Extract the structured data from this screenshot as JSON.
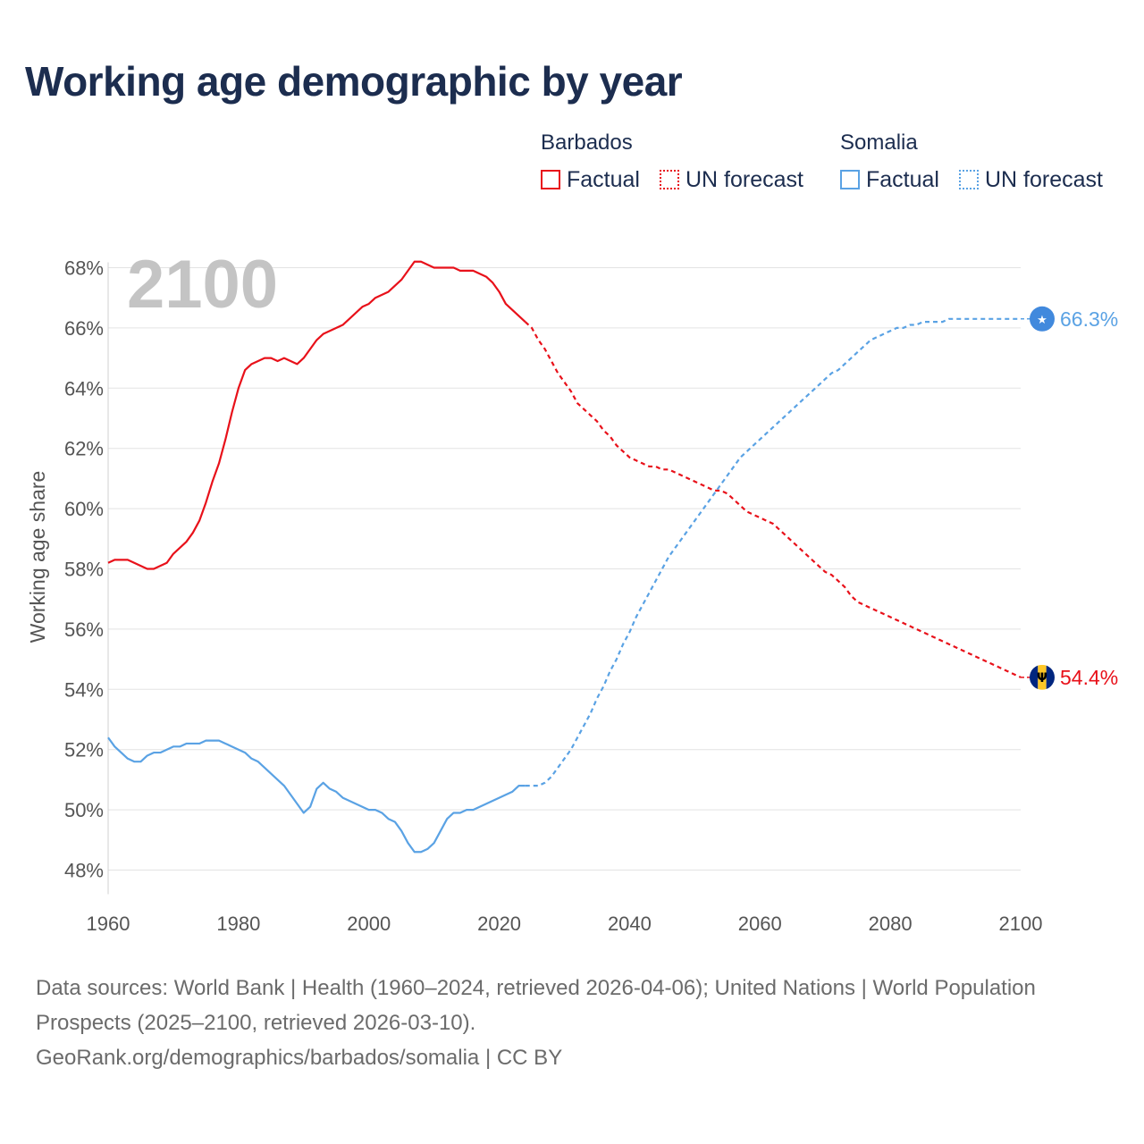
{
  "title": "Working age demographic by year",
  "legend": {
    "groups": [
      {
        "label": "Barbados",
        "color": "#e8111a",
        "factual": "Factual",
        "forecast": "UN forecast"
      },
      {
        "label": "Somalia",
        "color": "#5aa2e4",
        "factual": "Factual",
        "forecast": "UN forecast"
      }
    ]
  },
  "year_label": "2100",
  "footer": {
    "line1": "Data sources: World Bank | Health (1960–2024, retrieved 2026-04-06); United Nations | World Population Prospects (2025–2100, retrieved 2026-03-10).",
    "line2": "GeoRank.org/demographics/barbados/somalia | CC BY"
  },
  "chart_data": {
    "type": "line",
    "title": "Working age demographic by year",
    "xlabel": "",
    "ylabel": "Working age share",
    "xlim": [
      1960,
      2100
    ],
    "ylim": [
      47,
      69
    ],
    "x_ticks": [
      1960,
      1980,
      2000,
      2020,
      2040,
      2060,
      2080,
      2100
    ],
    "y_ticks": [
      48,
      50,
      52,
      54,
      56,
      58,
      60,
      62,
      64,
      66,
      68
    ],
    "y_tick_suffix": "%",
    "grid": true,
    "series": [
      {
        "name": "Barbados",
        "color": "#e8111a",
        "end_label": "54.4%",
        "flag_icon": "barbados-flag-icon",
        "factual": [
          [
            1960,
            58.2
          ],
          [
            1961,
            58.3
          ],
          [
            1962,
            58.3
          ],
          [
            1963,
            58.3
          ],
          [
            1964,
            58.2
          ],
          [
            1965,
            58.1
          ],
          [
            1966,
            58.0
          ],
          [
            1967,
            58.0
          ],
          [
            1968,
            58.1
          ],
          [
            1969,
            58.2
          ],
          [
            1970,
            58.5
          ],
          [
            1971,
            58.7
          ],
          [
            1972,
            58.9
          ],
          [
            1973,
            59.2
          ],
          [
            1974,
            59.6
          ],
          [
            1975,
            60.2
          ],
          [
            1976,
            60.9
          ],
          [
            1977,
            61.5
          ],
          [
            1978,
            62.3
          ],
          [
            1979,
            63.2
          ],
          [
            1980,
            64.0
          ],
          [
            1981,
            64.6
          ],
          [
            1982,
            64.8
          ],
          [
            1983,
            64.9
          ],
          [
            1984,
            65.0
          ],
          [
            1985,
            65.0
          ],
          [
            1986,
            64.9
          ],
          [
            1987,
            65.0
          ],
          [
            1988,
            64.9
          ],
          [
            1989,
            64.8
          ],
          [
            1990,
            65.0
          ],
          [
            1991,
            65.3
          ],
          [
            1992,
            65.6
          ],
          [
            1993,
            65.8
          ],
          [
            1994,
            65.9
          ],
          [
            1995,
            66.0
          ],
          [
            1996,
            66.1
          ],
          [
            1997,
            66.3
          ],
          [
            1998,
            66.5
          ],
          [
            1999,
            66.7
          ],
          [
            2000,
            66.8
          ],
          [
            2001,
            67.0
          ],
          [
            2002,
            67.1
          ],
          [
            2003,
            67.2
          ],
          [
            2004,
            67.4
          ],
          [
            2005,
            67.6
          ],
          [
            2006,
            67.9
          ],
          [
            2007,
            68.2
          ],
          [
            2008,
            68.2
          ],
          [
            2009,
            68.1
          ],
          [
            2010,
            68.0
          ],
          [
            2011,
            68.0
          ],
          [
            2012,
            68.0
          ],
          [
            2013,
            68.0
          ],
          [
            2014,
            67.9
          ],
          [
            2015,
            67.9
          ],
          [
            2016,
            67.9
          ],
          [
            2017,
            67.8
          ],
          [
            2018,
            67.7
          ],
          [
            2019,
            67.5
          ],
          [
            2020,
            67.2
          ],
          [
            2021,
            66.8
          ],
          [
            2022,
            66.6
          ],
          [
            2023,
            66.4
          ],
          [
            2024,
            66.2
          ]
        ],
        "forecast": [
          [
            2024,
            66.2
          ],
          [
            2025,
            66.0
          ],
          [
            2026,
            65.6
          ],
          [
            2027,
            65.3
          ],
          [
            2028,
            64.9
          ],
          [
            2029,
            64.5
          ],
          [
            2030,
            64.2
          ],
          [
            2031,
            63.9
          ],
          [
            2032,
            63.5
          ],
          [
            2033,
            63.3
          ],
          [
            2034,
            63.1
          ],
          [
            2035,
            62.9
          ],
          [
            2036,
            62.6
          ],
          [
            2037,
            62.4
          ],
          [
            2038,
            62.1
          ],
          [
            2039,
            61.9
          ],
          [
            2040,
            61.7
          ],
          [
            2041,
            61.6
          ],
          [
            2042,
            61.5
          ],
          [
            2043,
            61.4
          ],
          [
            2044,
            61.4
          ],
          [
            2045,
            61.3
          ],
          [
            2046,
            61.3
          ],
          [
            2047,
            61.2
          ],
          [
            2048,
            61.1
          ],
          [
            2049,
            61.0
          ],
          [
            2050,
            60.9
          ],
          [
            2051,
            60.8
          ],
          [
            2052,
            60.7
          ],
          [
            2053,
            60.6
          ],
          [
            2054,
            60.6
          ],
          [
            2055,
            60.5
          ],
          [
            2056,
            60.3
          ],
          [
            2057,
            60.1
          ],
          [
            2058,
            59.9
          ],
          [
            2059,
            59.8
          ],
          [
            2060,
            59.7
          ],
          [
            2061,
            59.6
          ],
          [
            2062,
            59.5
          ],
          [
            2063,
            59.3
          ],
          [
            2064,
            59.1
          ],
          [
            2065,
            58.9
          ],
          [
            2066,
            58.7
          ],
          [
            2067,
            58.5
          ],
          [
            2068,
            58.3
          ],
          [
            2069,
            58.1
          ],
          [
            2070,
            57.9
          ],
          [
            2071,
            57.8
          ],
          [
            2072,
            57.6
          ],
          [
            2073,
            57.4
          ],
          [
            2074,
            57.1
          ],
          [
            2075,
            56.9
          ],
          [
            2076,
            56.8
          ],
          [
            2077,
            56.7
          ],
          [
            2078,
            56.6
          ],
          [
            2079,
            56.5
          ],
          [
            2080,
            56.4
          ],
          [
            2081,
            56.3
          ],
          [
            2082,
            56.2
          ],
          [
            2083,
            56.1
          ],
          [
            2084,
            56.0
          ],
          [
            2085,
            55.9
          ],
          [
            2086,
            55.8
          ],
          [
            2087,
            55.7
          ],
          [
            2088,
            55.6
          ],
          [
            2089,
            55.5
          ],
          [
            2090,
            55.4
          ],
          [
            2091,
            55.3
          ],
          [
            2092,
            55.2
          ],
          [
            2093,
            55.1
          ],
          [
            2094,
            55.0
          ],
          [
            2095,
            54.9
          ],
          [
            2096,
            54.8
          ],
          [
            2097,
            54.7
          ],
          [
            2098,
            54.6
          ],
          [
            2099,
            54.5
          ],
          [
            2100,
            54.4
          ]
        ]
      },
      {
        "name": "Somalia",
        "color": "#5aa2e4",
        "end_label": "66.3%",
        "flag_icon": "somalia-flag-icon",
        "factual": [
          [
            1960,
            52.4
          ],
          [
            1961,
            52.1
          ],
          [
            1962,
            51.9
          ],
          [
            1963,
            51.7
          ],
          [
            1964,
            51.6
          ],
          [
            1965,
            51.6
          ],
          [
            1966,
            51.8
          ],
          [
            1967,
            51.9
          ],
          [
            1968,
            51.9
          ],
          [
            1969,
            52.0
          ],
          [
            1970,
            52.1
          ],
          [
            1971,
            52.1
          ],
          [
            1972,
            52.2
          ],
          [
            1973,
            52.2
          ],
          [
            1974,
            52.2
          ],
          [
            1975,
            52.3
          ],
          [
            1976,
            52.3
          ],
          [
            1977,
            52.3
          ],
          [
            1978,
            52.2
          ],
          [
            1979,
            52.1
          ],
          [
            1980,
            52.0
          ],
          [
            1981,
            51.9
          ],
          [
            1982,
            51.7
          ],
          [
            1983,
            51.6
          ],
          [
            1984,
            51.4
          ],
          [
            1985,
            51.2
          ],
          [
            1986,
            51.0
          ],
          [
            1987,
            50.8
          ],
          [
            1988,
            50.5
          ],
          [
            1989,
            50.2
          ],
          [
            1990,
            49.9
          ],
          [
            1991,
            50.1
          ],
          [
            1992,
            50.7
          ],
          [
            1993,
            50.9
          ],
          [
            1994,
            50.7
          ],
          [
            1995,
            50.6
          ],
          [
            1996,
            50.4
          ],
          [
            1997,
            50.3
          ],
          [
            1998,
            50.2
          ],
          [
            1999,
            50.1
          ],
          [
            2000,
            50.0
          ],
          [
            2001,
            50.0
          ],
          [
            2002,
            49.9
          ],
          [
            2003,
            49.7
          ],
          [
            2004,
            49.6
          ],
          [
            2005,
            49.3
          ],
          [
            2006,
            48.9
          ],
          [
            2007,
            48.6
          ],
          [
            2008,
            48.6
          ],
          [
            2009,
            48.7
          ],
          [
            2010,
            48.9
          ],
          [
            2011,
            49.3
          ],
          [
            2012,
            49.7
          ],
          [
            2013,
            49.9
          ],
          [
            2014,
            49.9
          ],
          [
            2015,
            50.0
          ],
          [
            2016,
            50.0
          ],
          [
            2017,
            50.1
          ],
          [
            2018,
            50.2
          ],
          [
            2019,
            50.3
          ],
          [
            2020,
            50.4
          ],
          [
            2021,
            50.5
          ],
          [
            2022,
            50.6
          ],
          [
            2023,
            50.8
          ],
          [
            2024,
            50.8
          ]
        ],
        "forecast": [
          [
            2024,
            50.8
          ],
          [
            2025,
            50.8
          ],
          [
            2026,
            50.8
          ],
          [
            2027,
            50.9
          ],
          [
            2028,
            51.1
          ],
          [
            2029,
            51.4
          ],
          [
            2030,
            51.7
          ],
          [
            2031,
            52.0
          ],
          [
            2032,
            52.4
          ],
          [
            2033,
            52.8
          ],
          [
            2034,
            53.2
          ],
          [
            2035,
            53.7
          ],
          [
            2036,
            54.1
          ],
          [
            2037,
            54.6
          ],
          [
            2038,
            55.0
          ],
          [
            2039,
            55.5
          ],
          [
            2040,
            55.9
          ],
          [
            2041,
            56.4
          ],
          [
            2042,
            56.8
          ],
          [
            2043,
            57.2
          ],
          [
            2044,
            57.6
          ],
          [
            2045,
            58.0
          ],
          [
            2046,
            58.4
          ],
          [
            2047,
            58.7
          ],
          [
            2048,
            59.0
          ],
          [
            2049,
            59.3
          ],
          [
            2050,
            59.6
          ],
          [
            2051,
            59.9
          ],
          [
            2052,
            60.2
          ],
          [
            2053,
            60.5
          ],
          [
            2054,
            60.8
          ],
          [
            2055,
            61.1
          ],
          [
            2056,
            61.4
          ],
          [
            2057,
            61.7
          ],
          [
            2058,
            61.9
          ],
          [
            2059,
            62.1
          ],
          [
            2060,
            62.3
          ],
          [
            2061,
            62.5
          ],
          [
            2062,
            62.7
          ],
          [
            2063,
            62.9
          ],
          [
            2064,
            63.1
          ],
          [
            2065,
            63.3
          ],
          [
            2066,
            63.5
          ],
          [
            2067,
            63.7
          ],
          [
            2068,
            63.9
          ],
          [
            2069,
            64.1
          ],
          [
            2070,
            64.3
          ],
          [
            2071,
            64.5
          ],
          [
            2072,
            64.6
          ],
          [
            2073,
            64.8
          ],
          [
            2074,
            65.0
          ],
          [
            2075,
            65.2
          ],
          [
            2076,
            65.4
          ],
          [
            2077,
            65.6
          ],
          [
            2078,
            65.7
          ],
          [
            2079,
            65.8
          ],
          [
            2080,
            65.9
          ],
          [
            2081,
            66.0
          ],
          [
            2082,
            66.0
          ],
          [
            2083,
            66.1
          ],
          [
            2084,
            66.1
          ],
          [
            2085,
            66.2
          ],
          [
            2086,
            66.2
          ],
          [
            2087,
            66.2
          ],
          [
            2088,
            66.2
          ],
          [
            2089,
            66.3
          ],
          [
            2090,
            66.3
          ],
          [
            2091,
            66.3
          ],
          [
            2092,
            66.3
          ],
          [
            2093,
            66.3
          ],
          [
            2094,
            66.3
          ],
          [
            2095,
            66.3
          ],
          [
            2096,
            66.3
          ],
          [
            2097,
            66.3
          ],
          [
            2098,
            66.3
          ],
          [
            2099,
            66.3
          ],
          [
            2100,
            66.3
          ]
        ]
      }
    ]
  }
}
